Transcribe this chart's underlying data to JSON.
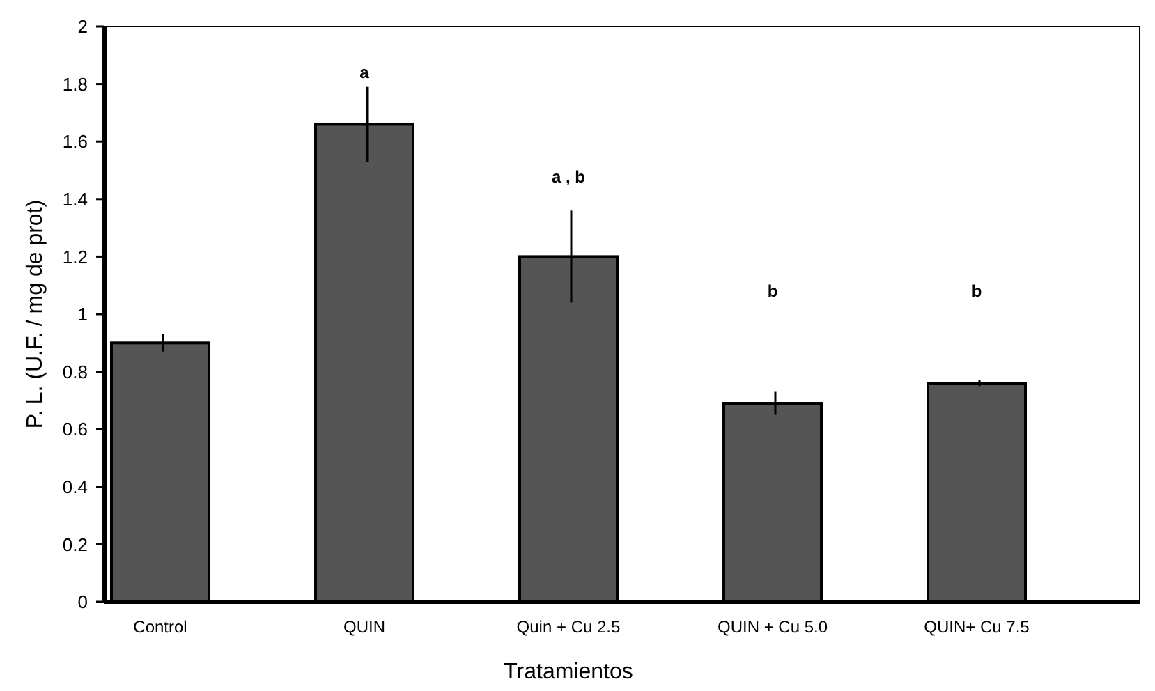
{
  "chart_data": {
    "type": "bar",
    "xlabel": "Tratamientos",
    "ylabel": "P. L. (U.F. / mg de prot)",
    "categories": [
      "Control",
      "QUIN",
      "Quin + Cu 2.5",
      "QUIN + Cu 5.0",
      "QUIN+ Cu 7.5"
    ],
    "values": [
      0.9,
      1.66,
      1.2,
      0.69,
      0.76
    ],
    "errors": [
      0.03,
      0.13,
      0.16,
      0.04,
      0.01
    ],
    "color": "#555555",
    "ylim": [
      0,
      2
    ],
    "yticks": [
      0,
      0.2,
      0.4,
      0.6,
      0.8,
      1,
      1.2,
      1.4,
      1.6,
      1.8,
      2
    ],
    "grid": false,
    "annotations": [
      "a",
      "a , b",
      "b",
      "b"
    ]
  }
}
